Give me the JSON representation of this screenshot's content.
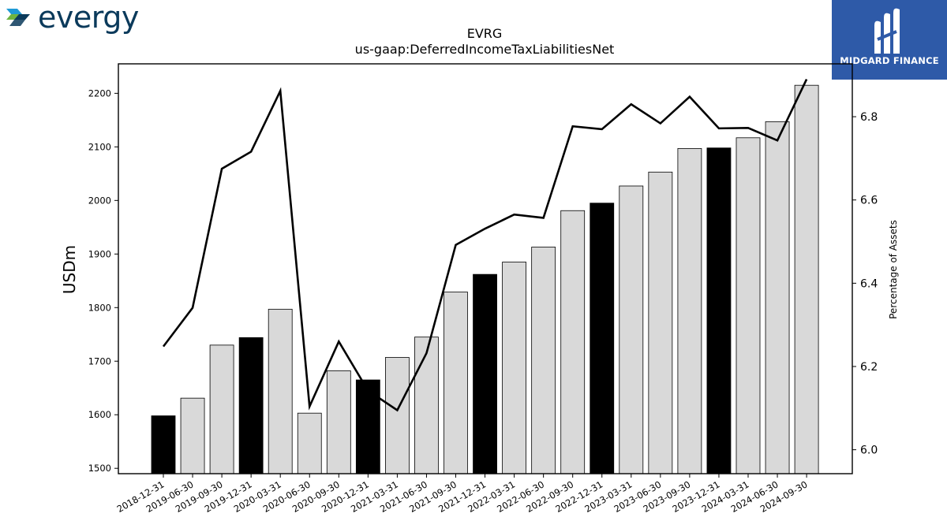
{
  "branding": {
    "left_logo_icon": "evergy-chevron-logo-icon",
    "left_logo_text": "evergy",
    "left_logo_colors": [
      "#1f9ad6",
      "#6fb43f",
      "#0b3a5b"
    ],
    "right_logo_icon": "midgard-finance-logo-icon",
    "right_logo_text": "MIDGARD FINANCE",
    "right_logo_bg": "#2e5aa8"
  },
  "chart_data": {
    "type": "bar",
    "title": "EVRG",
    "subtitle": "us-gaap:DeferredIncomeTaxLiabilitiesNet",
    "ylabel": "USDm",
    "y2label": "Percentage of Assets",
    "ylim": [
      1490,
      2255
    ],
    "y2lim": [
      5.9425,
      6.927
    ],
    "yticks": [
      "1500",
      "1600",
      "1700",
      "1800",
      "1900",
      "2000",
      "2100",
      "2200"
    ],
    "y2ticks": [
      "6.0",
      "6.2",
      "6.4",
      "6.6",
      "6.8"
    ],
    "categories": [
      "2018-12-31",
      "2019-06-30",
      "2019-09-30",
      "2019-12-31",
      "2020-03-31",
      "2020-06-30",
      "2020-09-30",
      "2020-12-31",
      "2021-03-31",
      "2021-06-30",
      "2021-09-30",
      "2021-12-31",
      "2022-03-31",
      "2022-06-30",
      "2022-09-30",
      "2022-12-31",
      "2023-03-31",
      "2023-06-30",
      "2023-09-30",
      "2023-12-31",
      "2024-03-31",
      "2024-06-30",
      "2024-09-30"
    ],
    "series": [
      {
        "type": "bar",
        "values": [
          1598,
          1631,
          1730,
          1744,
          1797,
          1603,
          1682,
          1665,
          1707,
          1745,
          1829,
          1862,
          1885,
          1913,
          1981,
          1995,
          2027,
          2053,
          2097,
          2098,
          2117,
          2147,
          2215
        ],
        "highlight_categories": [
          "2018-12-31",
          "2019-12-31",
          "2020-12-31",
          "2021-12-31",
          "2022-12-31",
          "2023-12-31"
        ],
        "color": "#d9d9d9",
        "highlight_color": "#000000",
        "axis": "left"
      },
      {
        "type": "line",
        "values": [
          6.248,
          6.341,
          6.675,
          6.716,
          6.862,
          6.104,
          6.26,
          6.142,
          6.095,
          6.232,
          6.492,
          6.531,
          6.565,
          6.557,
          6.777,
          6.77,
          6.83,
          6.784,
          6.848,
          6.772,
          6.773,
          6.743,
          6.89
        ],
        "color": "#000000",
        "axis": "right"
      }
    ],
    "grid": false,
    "legend": "none"
  }
}
